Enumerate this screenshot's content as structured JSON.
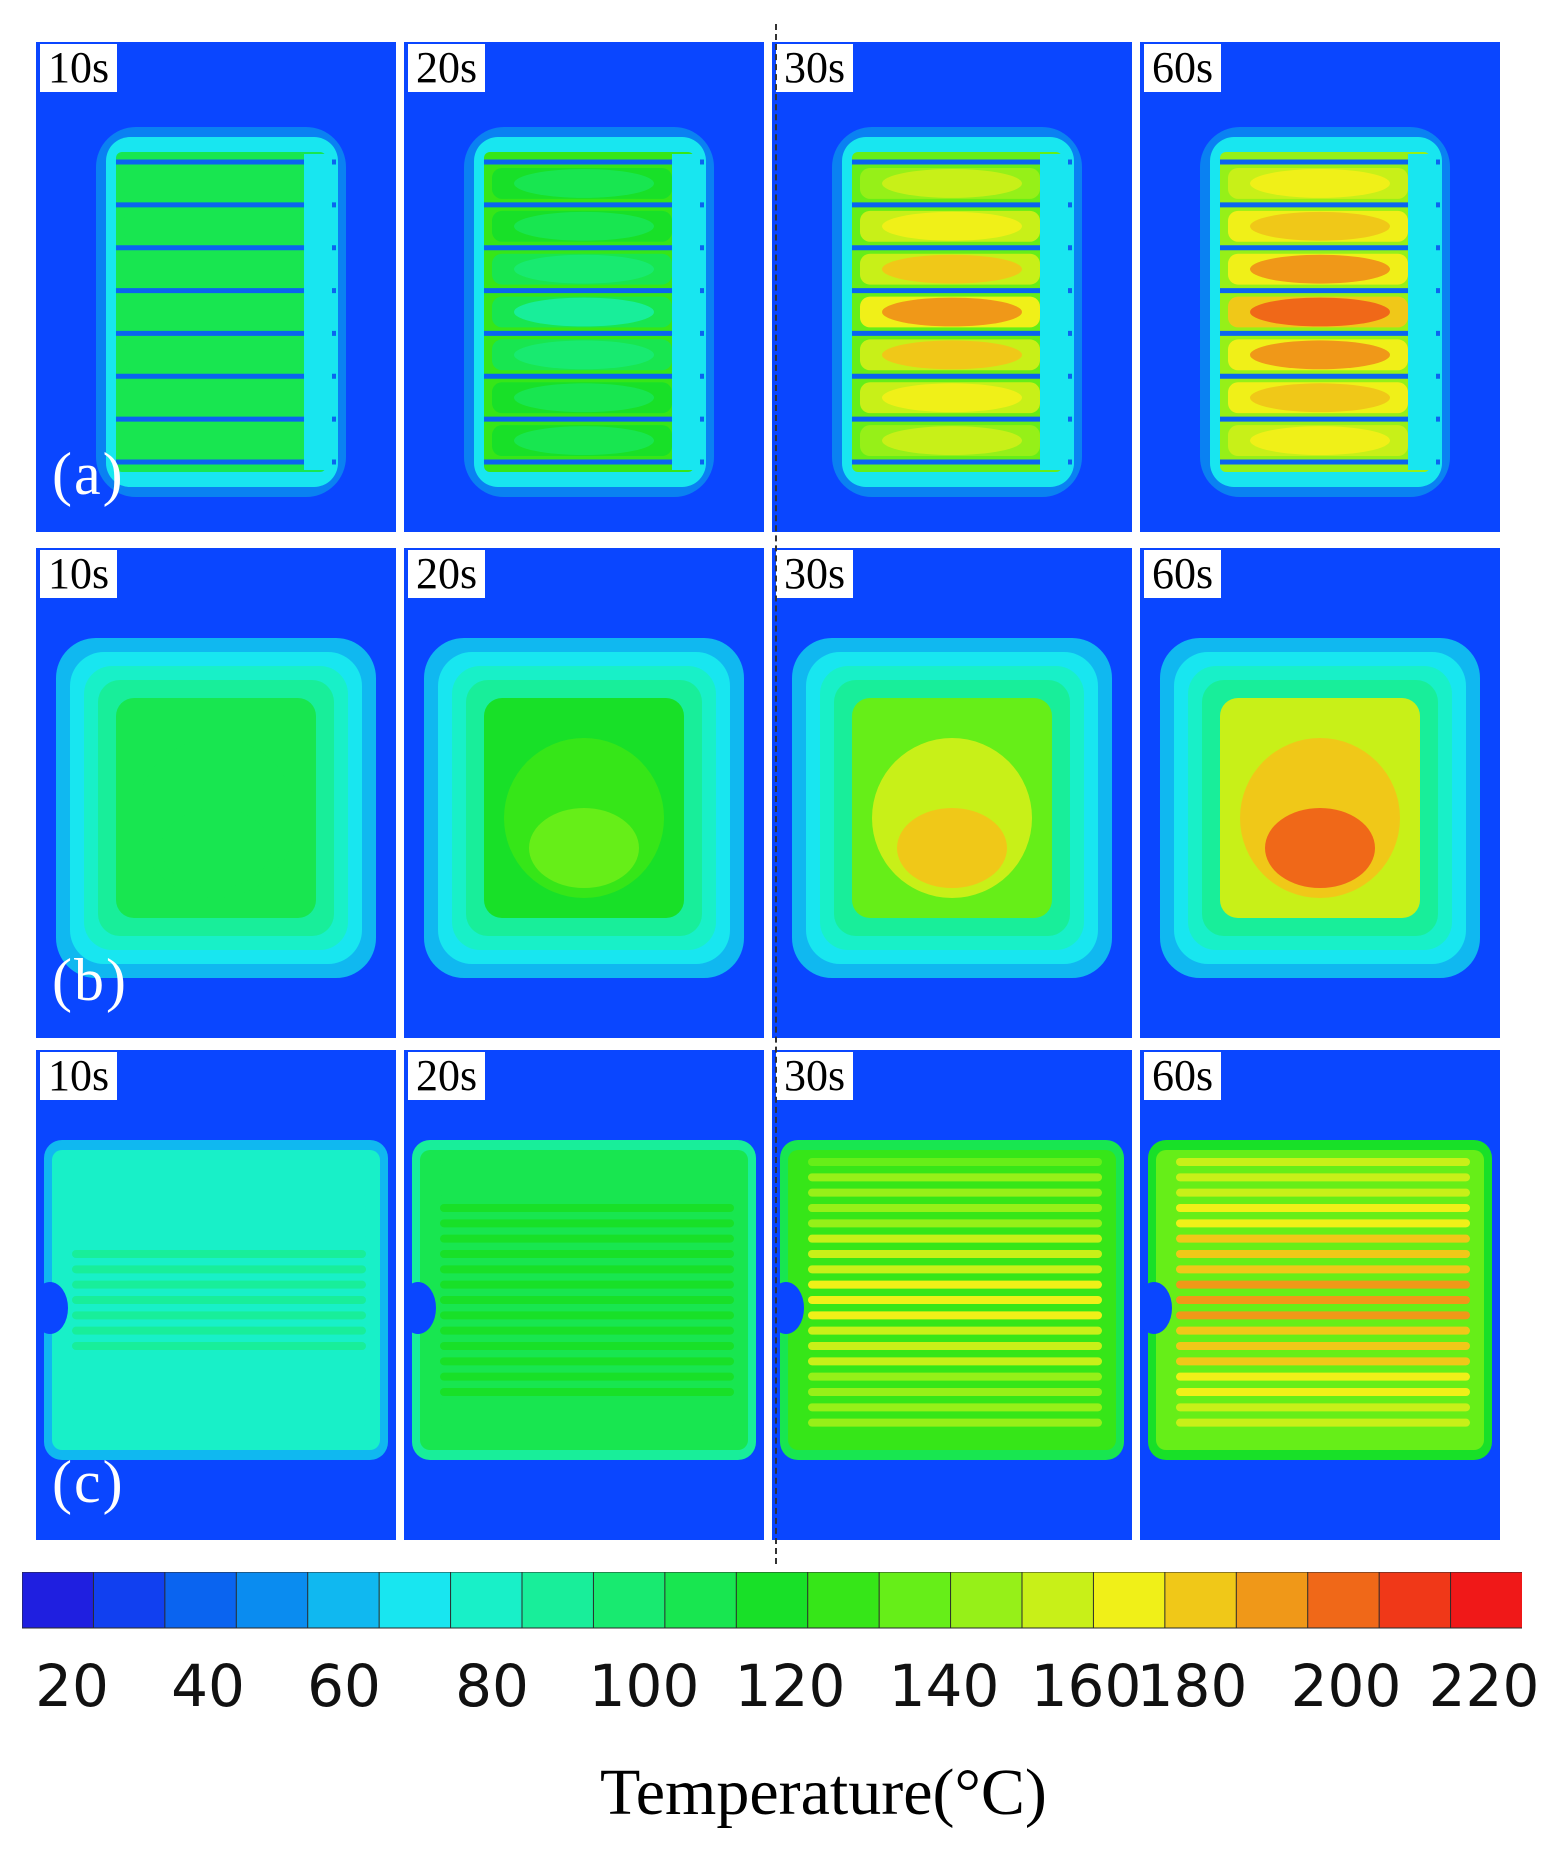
{
  "rows": [
    {
      "label": "(a)",
      "pattern": "fins",
      "panels": [
        {
          "time": "10s",
          "level": 0.45,
          "hot": 0.0
        },
        {
          "time": "20s",
          "level": 0.55,
          "hot": 0.35
        },
        {
          "time": "30s",
          "level": 0.62,
          "hot": 0.85
        },
        {
          "time": "60s",
          "level": 0.66,
          "hot": 0.9
        }
      ]
    },
    {
      "label": "(b)",
      "pattern": "block",
      "panels": [
        {
          "time": "10s",
          "level": 0.44,
          "hot": 0.47
        },
        {
          "time": "20s",
          "level": 0.5,
          "hot": 0.58
        },
        {
          "time": "30s",
          "level": 0.6,
          "hot": 0.8
        },
        {
          "time": "60s",
          "level": 0.7,
          "hot": 0.9
        }
      ]
    },
    {
      "label": "(c)",
      "pattern": "serpentine",
      "panels": [
        {
          "time": "10s",
          "level": 0.28,
          "hot": 0.34
        },
        {
          "time": "20s",
          "level": 0.45,
          "hot": 0.5
        },
        {
          "time": "30s",
          "level": 0.55,
          "hot": 0.75
        },
        {
          "time": "60s",
          "level": 0.6,
          "hot": 0.86
        }
      ]
    }
  ],
  "colorbar": {
    "title": "Temperature(°C)",
    "ticks": [
      "20",
      "40",
      "60",
      "80",
      "100",
      "120",
      "140",
      "160",
      "180",
      "200",
      "220"
    ],
    "colors": [
      "#1f1fe0",
      "#1140f0",
      "#0a64f0",
      "#0a8cf0",
      "#10b8f0",
      "#18e6f0",
      "#18f0c8",
      "#18ee9a",
      "#18ea70",
      "#18e650",
      "#18e028",
      "#36e618",
      "#66ee18",
      "#96f018",
      "#c8f018",
      "#f0f018",
      "#f0c818",
      "#f09818",
      "#f06818",
      "#f03818",
      "#f01818"
    ]
  },
  "colors": {
    "background": "#0a46ff"
  }
}
